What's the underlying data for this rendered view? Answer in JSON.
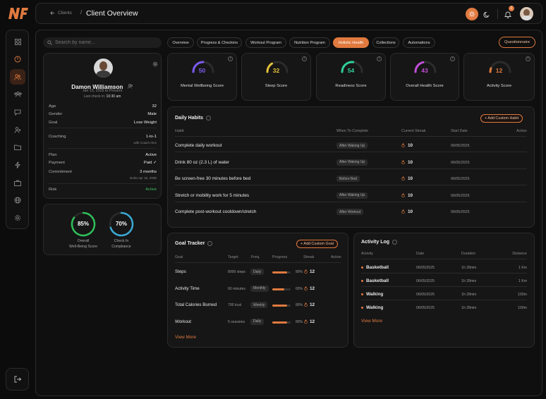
{
  "app": {
    "logo": "NF",
    "back_label": "Clients",
    "page_title": "Client Overview"
  },
  "header": {
    "notification_count": "2"
  },
  "search": {
    "placeholder": "Search by name..."
  },
  "sidebar": {
    "items": [
      "grid-icon",
      "power-icon",
      "users-icon",
      "group-icon",
      "chat-icon",
      "user-plus-icon",
      "folder-icon",
      "zap-icon",
      "briefcase-icon",
      "globe-icon",
      "gear-icon"
    ],
    "active_index": 2
  },
  "profile": {
    "name": "Damon Williamson",
    "since": "Jan 15, 2025 to Present",
    "last_checkin_label": "Last check in:",
    "last_checkin_time": "10:30 am",
    "details": [
      {
        "label": "Age",
        "value": "32"
      },
      {
        "label": "Gender",
        "value": "Male"
      },
      {
        "label": "Goal",
        "value": "Lose Weight"
      },
      {
        "label": "Coaching",
        "value": "1-to-1",
        "sub": "with Coach Alex"
      },
      {
        "label": "Plan",
        "value": "Active"
      },
      {
        "label": "Payment",
        "value": "Paid ✓"
      },
      {
        "label": "Commitment",
        "value": "3 months",
        "sub": "Ends Apr 15, 2025"
      },
      {
        "label": "Risk",
        "value": "Active"
      }
    ]
  },
  "summary_rings": [
    {
      "value": "85%",
      "label_line1": "Overall",
      "label_line2": "Well-Being Score",
      "color": "#2fbf5a",
      "fraction": 0.85
    },
    {
      "value": "70%",
      "label_line1": "Check In",
      "label_line2": "Compliance",
      "color": "#3aa9d4",
      "fraction": 0.7
    }
  ],
  "tabs": [
    "Overview",
    "Progress & Checkins",
    "Workout Program",
    "Nutrition Program",
    "Holistic Health",
    "Collections",
    "Automations"
  ],
  "active_tab": 4,
  "questionnaire_label": "Questionnaire",
  "scores": [
    {
      "value": "50",
      "label": "Mental Wellbeing Score",
      "color": "#7b5cf0",
      "fraction": 0.5
    },
    {
      "value": "32",
      "label": "Sleep Score",
      "color": "#e6c23a",
      "fraction": 0.32
    },
    {
      "value": "54",
      "label": "Readiness Score",
      "color": "#2fcf9a",
      "fraction": 0.54
    },
    {
      "value": "43",
      "label": "Overall Health Score",
      "color": "#c04fd8",
      "fraction": 0.43
    },
    {
      "value": "12",
      "label": "Activity Score",
      "color": "#e07a3f",
      "fraction": 0.12
    }
  ],
  "habits": {
    "title": "Daily Habits",
    "add_label": "+ Add Custom Habit",
    "columns": [
      "Habit",
      "When To Complete",
      "Current Streak",
      "Start Date",
      "Action"
    ],
    "rows": [
      {
        "habit": "Complete daily workout",
        "when": "After Waking Up",
        "streak": "10",
        "date": "06/05/2025"
      },
      {
        "habit": "Drink 80 oz (2.3 L) of water",
        "when": "After Waking Up",
        "streak": "10",
        "date": "06/05/2025"
      },
      {
        "habit": "Be screen-free 30 minutes before bed",
        "when": "Before Bed",
        "streak": "10",
        "date": "06/05/2025"
      },
      {
        "habit": "Stretch or mobility work for 5 minutes",
        "when": "After Waking Up",
        "streak": "10",
        "date": "06/05/2025"
      },
      {
        "habit": "Complete post-workout cooldown/stretch",
        "when": "After Workout",
        "streak": "10",
        "date": "06/05/2025"
      }
    ]
  },
  "goals": {
    "title": "Goal Tracker",
    "add_label": "+ Add Custom Goal",
    "columns": [
      "Goal",
      "Target",
      "Freq.",
      "Progress",
      "Streak",
      "Action"
    ],
    "rows": [
      {
        "goal": "Steps",
        "target": "8000 steps",
        "freq": "Daily",
        "progress_text": "80%",
        "progress": 0.8,
        "streak": "12"
      },
      {
        "goal": "Activity Time",
        "target": "60 minutes",
        "freq": "Monthly",
        "progress_text": "65%",
        "progress": 0.65,
        "streak": "12"
      },
      {
        "goal": "Total Calories Burned",
        "target": "700 kcal",
        "freq": "Weekly",
        "progress_text": "80%",
        "progress": 0.8,
        "streak": "12"
      },
      {
        "goal": "Workout",
        "target": "5 sessions",
        "freq": "Daily",
        "progress_text": "80%",
        "progress": 0.8,
        "streak": "12"
      }
    ],
    "view_more": "View More"
  },
  "activity": {
    "title": "Activity Log",
    "columns": [
      "Activity",
      "Date",
      "Duration",
      "Distance"
    ],
    "rows": [
      {
        "activity": "Basketball",
        "date": "06/05/2025",
        "duration": "1h 28min",
        "distance": "1 Km"
      },
      {
        "activity": "Basketball",
        "date": "06/05/2025",
        "duration": "1h 28min",
        "distance": "1 Km"
      },
      {
        "activity": "Walking",
        "date": "06/05/2025",
        "duration": "1h 28min",
        "distance": "100m"
      },
      {
        "activity": "Walking",
        "date": "06/05/2025",
        "duration": "1h 28min",
        "distance": "100m"
      }
    ],
    "view_more": "View More"
  },
  "colors": {
    "accent": "#e07a3f",
    "bg": "#0c0c0c",
    "card": "#161616",
    "border": "#2b2b2b"
  }
}
